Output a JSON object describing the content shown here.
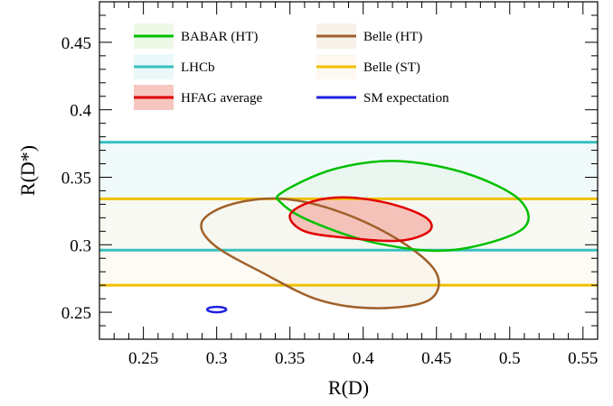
{
  "chart_data": {
    "type": "scatter",
    "xlabel": "R(D)",
    "ylabel": "R(D*)",
    "xlim": [
      0.22,
      0.56
    ],
    "ylim": [
      0.23,
      0.48
    ],
    "x_ticks": [
      "0.25",
      "0.3",
      "0.35",
      "0.4",
      "0.45",
      "0.5",
      "0.55"
    ],
    "x_tick_values": [
      0.25,
      0.3,
      0.35,
      0.4,
      0.45,
      0.5,
      0.55
    ],
    "y_ticks": [
      "0.25",
      "0.3",
      "0.35",
      "0.4",
      "0.45"
    ],
    "y_tick_values": [
      0.25,
      0.3,
      0.35,
      0.4,
      0.45
    ],
    "grid": false,
    "legend_position": "top",
    "series": [
      {
        "name": "BABAR (HT)",
        "kind": "ellipse",
        "color": "#00c000",
        "fill": "#e8f6e0",
        "points": [
          [
            0.345,
            0.339
          ],
          [
            0.38,
            0.356
          ],
          [
            0.423,
            0.362
          ],
          [
            0.47,
            0.353
          ],
          [
            0.507,
            0.333
          ],
          [
            0.508,
            0.311
          ],
          [
            0.46,
            0.296
          ],
          [
            0.41,
            0.301
          ],
          [
            0.365,
            0.317
          ],
          [
            0.344,
            0.331
          ]
        ]
      },
      {
        "name": "Belle (HT)",
        "kind": "ellipse",
        "color": "#a0602a",
        "fill": "#f4efe4",
        "points": [
          [
            0.29,
            0.317
          ],
          [
            0.31,
            0.33
          ],
          [
            0.345,
            0.334
          ],
          [
            0.385,
            0.324
          ],
          [
            0.425,
            0.303
          ],
          [
            0.45,
            0.279
          ],
          [
            0.445,
            0.259
          ],
          [
            0.41,
            0.253
          ],
          [
            0.37,
            0.259
          ],
          [
            0.33,
            0.28
          ],
          [
            0.298,
            0.3
          ]
        ]
      },
      {
        "name": "LHCb",
        "kind": "band",
        "color": "#3cc0c0",
        "fill": "#e6f6f8",
        "y_range": [
          0.296,
          0.376
        ]
      },
      {
        "name": "Belle (ST)",
        "kind": "band",
        "color": "#f0c000",
        "fill": "#fdf8ec",
        "y_range": [
          0.27,
          0.334
        ]
      },
      {
        "name": "HFAG average",
        "kind": "ellipse",
        "color": "#e00000",
        "fill": "#f4b8b0",
        "points": [
          [
            0.35,
            0.322
          ],
          [
            0.365,
            0.332
          ],
          [
            0.39,
            0.335
          ],
          [
            0.42,
            0.33
          ],
          [
            0.443,
            0.32
          ],
          [
            0.445,
            0.31
          ],
          [
            0.425,
            0.303
          ],
          [
            0.39,
            0.305
          ],
          [
            0.36,
            0.31
          ]
        ]
      },
      {
        "name": "SM expectation",
        "kind": "ellipse",
        "color": "#2020e0",
        "fill": "#ffffff",
        "center": [
          0.3,
          0.252
        ],
        "semi_axes": [
          0.0065,
          0.002
        ]
      }
    ]
  }
}
